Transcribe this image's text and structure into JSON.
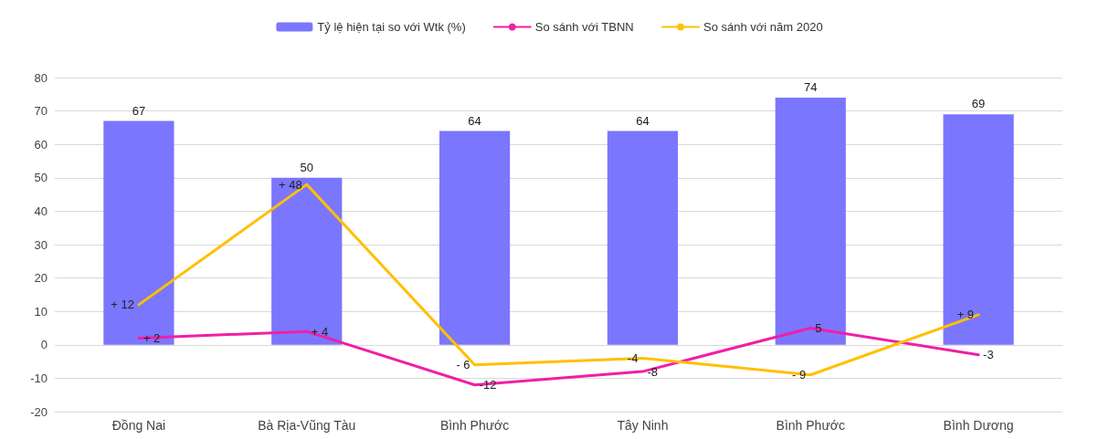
{
  "chart_data": {
    "type": "bar",
    "categories": [
      "Đồng Nai",
      "Bà Rịa-Vũng Tàu",
      "Bình Phước",
      "Tây Ninh",
      "Bình Phước",
      "Bình Dương"
    ],
    "series": [
      {
        "name": "Tỷ lệ hiện tại so với Wtk (%)",
        "color": "#7b76fe",
        "values": [
          67,
          50,
          64,
          64,
          74,
          69
        ],
        "value_labels": [
          "67",
          "50",
          "64",
          "64",
          "74",
          "69"
        ]
      },
      {
        "name": "So sánh với TBNN",
        "type": "line",
        "color": "#f01fa6",
        "values": [
          2,
          4,
          -12,
          -8,
          5,
          -3
        ],
        "value_labels": [
          "+ 2",
          "+ 4",
          "-12",
          "-8",
          "5",
          "-3"
        ]
      },
      {
        "name": "So sánh với năm 2020",
        "type": "line",
        "color": "#ffc000",
        "values": [
          12,
          48,
          -6,
          -4,
          -9,
          9
        ],
        "value_labels": [
          "+ 12",
          "+ 48",
          "- 6",
          "-4",
          "- 9",
          "+ 9"
        ]
      }
    ],
    "ylim": [
      -20,
      80
    ],
    "yticks": [
      -20,
      -10,
      0,
      10,
      20,
      30,
      40,
      50,
      60,
      70,
      80
    ],
    "grid": "y",
    "legend": "top",
    "line_style": "solid"
  }
}
